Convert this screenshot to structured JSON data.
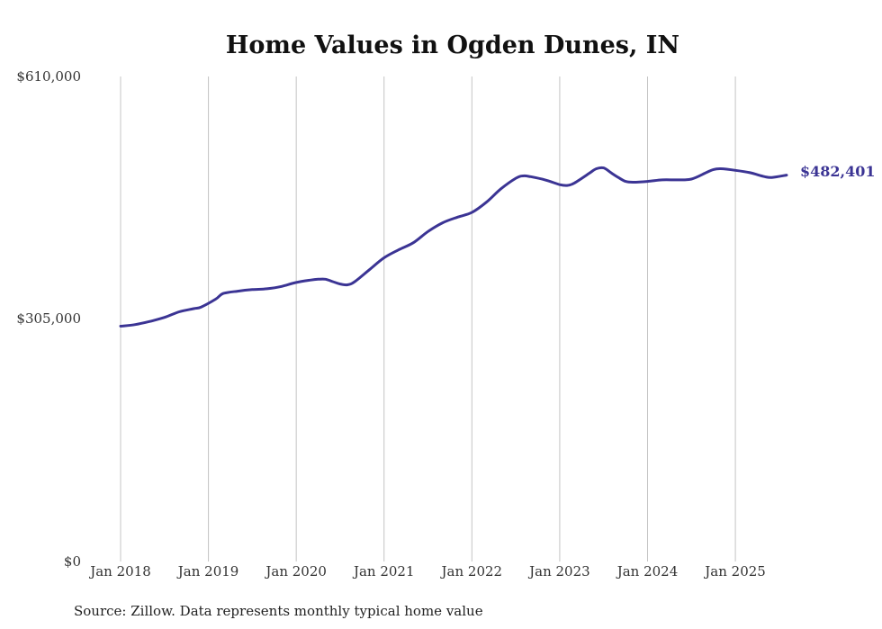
{
  "chart_data": {
    "type": "line",
    "title": "Home Values in Ogden Dunes, IN",
    "source": "Source: Zillow. Data represents monthly typical home value",
    "ylim": [
      0,
      610000
    ],
    "y_ticks": [
      {
        "value": 0,
        "label": "$0"
      },
      {
        "value": 305000,
        "label": "$305,000"
      },
      {
        "value": 610000,
        "label": "$610,000"
      }
    ],
    "x_ticks": [
      {
        "date": "2018-01",
        "label": "Jan 2018"
      },
      {
        "date": "2019-01",
        "label": "Jan 2019"
      },
      {
        "date": "2020-01",
        "label": "Jan 2020"
      },
      {
        "date": "2021-01",
        "label": "Jan 2021"
      },
      {
        "date": "2022-01",
        "label": "Jan 2022"
      },
      {
        "date": "2023-01",
        "label": "Jan 2023"
      },
      {
        "date": "2024-01",
        "label": "Jan 2024"
      },
      {
        "date": "2025-01",
        "label": "Jan 2025"
      }
    ],
    "grid": "vertical",
    "line_color": "#3b3494",
    "end_label": "$482,401",
    "series": [
      {
        "x": [
          "2018-01",
          "2018-03",
          "2018-05",
          "2018-07",
          "2018-09",
          "2018-11",
          "2018-12",
          "2019-02",
          "2019-03",
          "2019-05",
          "2019-07",
          "2019-09",
          "2019-11",
          "2020-01",
          "2020-03",
          "2020-04",
          "2020-05",
          "2020-06",
          "2020-07",
          "2020-08",
          "2020-09",
          "2020-11",
          "2021-01",
          "2021-03",
          "2021-05",
          "2021-07",
          "2021-09",
          "2021-11",
          "2022-01",
          "2022-03",
          "2022-05",
          "2022-07",
          "2022-08",
          "2022-09",
          "2022-11",
          "2023-01",
          "2023-02",
          "2023-03",
          "2023-05",
          "2023-06",
          "2023-07",
          "2023-08",
          "2023-09",
          "2023-10",
          "2023-11",
          "2024-01",
          "2024-03",
          "2024-05",
          "2024-07",
          "2024-09",
          "2024-10",
          "2024-11",
          "2025-01",
          "2025-03",
          "2025-05",
          "2025-06",
          "2025-08"
        ],
        "values": [
          296000,
          298000,
          302000,
          307000,
          314000,
          318000,
          320000,
          330000,
          337000,
          340000,
          342000,
          343000,
          346000,
          351000,
          354000,
          355000,
          355000,
          352000,
          349000,
          348000,
          352000,
          367000,
          382000,
          392000,
          401000,
          415000,
          426000,
          433000,
          439000,
          452000,
          469000,
          482000,
          485000,
          484000,
          480000,
          474000,
          473000,
          476000,
          488000,
          494000,
          495000,
          489000,
          483000,
          478000,
          477000,
          478000,
          480000,
          480000,
          481000,
          489000,
          493000,
          494000,
          492000,
          489000,
          484000,
          483000,
          486000
        ]
      }
    ]
  }
}
